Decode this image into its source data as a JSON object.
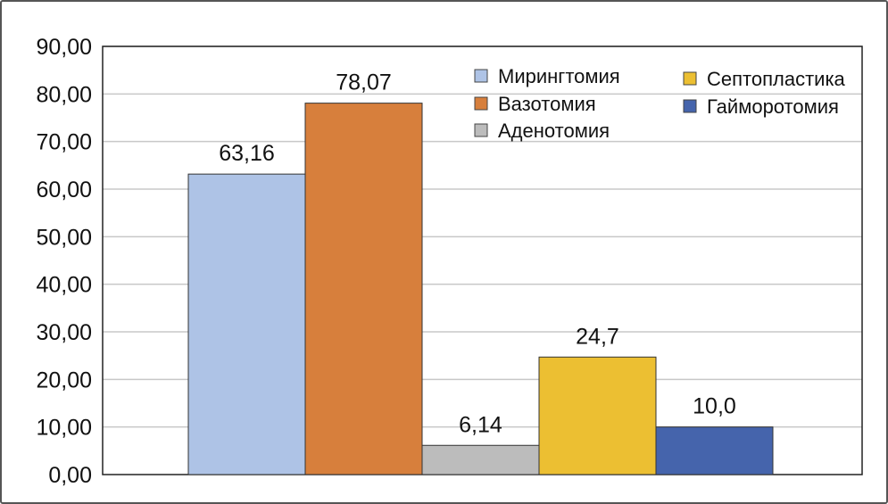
{
  "chart_data": {
    "type": "bar",
    "title": "",
    "xlabel": "",
    "ylabel": "",
    "ylim": [
      0,
      90
    ],
    "yticks": [
      "0,00",
      "10,00",
      "20,00",
      "30,00",
      "40,00",
      "50,00",
      "60,00",
      "70,00",
      "80,00",
      "90,00"
    ],
    "grid": true,
    "legend_position": "top-right",
    "series": [
      {
        "name": "Мирингтомия",
        "value": 63.16,
        "label": "63,16",
        "color": "#aec3e6"
      },
      {
        "name": "Вазотомия",
        "value": 78.07,
        "label": "78,07",
        "color": "#d77f3c"
      },
      {
        "name": "Аденотомия",
        "value": 6.14,
        "label": "6,14",
        "color": "#bcbcbc"
      },
      {
        "name": "Септопластика",
        "value": 24.7,
        "label": "24,7",
        "color": "#ecbf32"
      },
      {
        "name": "Гайморотомия",
        "value": 10.0,
        "label": "10,0",
        "color": "#4564ac"
      }
    ]
  }
}
